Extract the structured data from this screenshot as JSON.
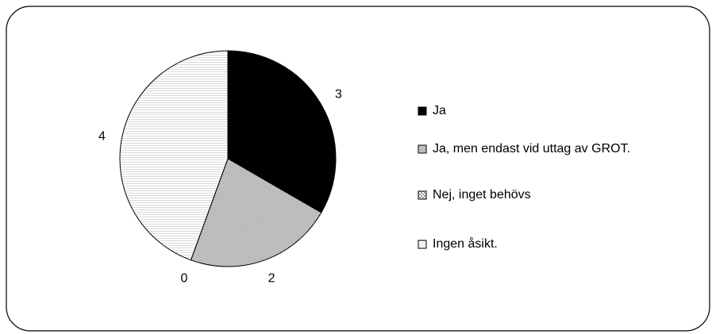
{
  "chart_data": {
    "type": "pie",
    "categories": [
      "Ja",
      "Ja, men endast vid uttag av GROT.",
      "Nej, inget behövs",
      "Ingen åsikt."
    ],
    "values": [
      3,
      2,
      0,
      4
    ],
    "colors": [
      "#000000",
      "#7a7a7a",
      "#9a9a9a",
      "#d8d8d8"
    ]
  }
}
